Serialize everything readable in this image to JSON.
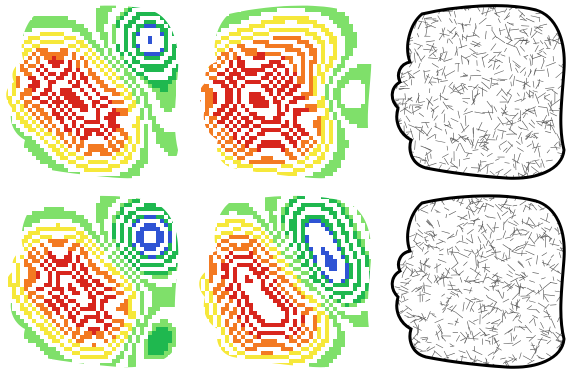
{
  "figure": {
    "rows": [
      {
        "panels": [
          {
            "kind": "contour",
            "palette": "smooth"
          },
          {
            "kind": "contour",
            "palette": "noisy"
          },
          {
            "kind": "hatch"
          }
        ]
      },
      {
        "panels": [
          {
            "kind": "contour",
            "palette": "smooth"
          },
          {
            "kind": "contour",
            "palette": "noisy"
          },
          {
            "kind": "hatch"
          }
        ]
      }
    ],
    "colors": {
      "high": "#d8261d",
      "mid_high": "#f37a22",
      "mid": "#f6e83a",
      "low": "#7fe06a",
      "lowest": "#1fb84f",
      "edge": "#2f54d4",
      "outline": "#000000",
      "hatch": "#555555"
    }
  }
}
